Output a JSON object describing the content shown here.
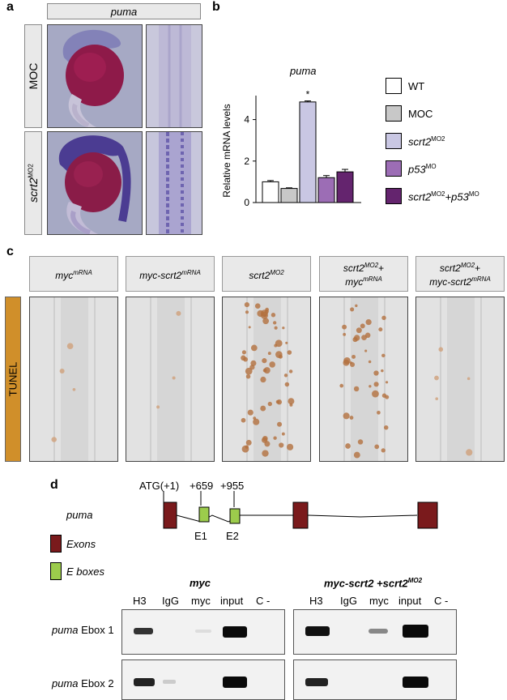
{
  "panel_a": {
    "letter": "a",
    "header": "puma",
    "row_labels": [
      "MOC",
      "scrt2"
    ],
    "row_label_sup": "MO2"
  },
  "panel_b": {
    "letter": "b",
    "title": "puma",
    "ylabel": "Relative mRNA levels",
    "significance": "*",
    "legend": [
      {
        "text": "WT",
        "sup": "",
        "color": "#ffffff"
      },
      {
        "text": "MOC",
        "sup": "",
        "color": "#c8c8c8"
      },
      {
        "text": "scrt2",
        "sup": "MO2",
        "color": "#c9c7e3"
      },
      {
        "text": "p53",
        "sup": "MO",
        "color": "#9c6db5"
      },
      {
        "text": "scrt2",
        "sup": "MO2",
        "text2": "+p53",
        "sup2": "MO",
        "color": "#64246e"
      }
    ]
  },
  "chart_data": {
    "type": "bar",
    "title": "puma",
    "ylabel": "Relative mRNA levels",
    "xlabel": "",
    "ylim": [
      0,
      5
    ],
    "yticks": [
      0,
      2,
      4
    ],
    "categories": [
      "WT",
      "MOC",
      "scrt2MO2",
      "p53MO",
      "scrt2MO2+p53MO"
    ],
    "values": [
      1.0,
      0.68,
      4.85,
      1.2,
      1.48
    ],
    "errors": [
      0.06,
      0.03,
      0.05,
      0.1,
      0.12
    ],
    "colors": [
      "#ffffff",
      "#c8c8c8",
      "#c9c7e3",
      "#9c6db5",
      "#64246e"
    ]
  },
  "panel_c": {
    "letter": "c",
    "row_label": "TUNEL",
    "headers": [
      {
        "l1": "myc",
        "s1": "mRNA",
        "l2": "",
        "s2": ""
      },
      {
        "l1": "myc-scrt2",
        "s1": "mRNA",
        "l2": "",
        "s2": ""
      },
      {
        "l1": "scrt2",
        "s1": "MO2",
        "l2": "",
        "s2": ""
      },
      {
        "l1": "scrt2",
        "s1": "MO2",
        "p1": "+",
        "l2": "myc",
        "s2": "mRNA"
      },
      {
        "l1": "scrt2",
        "s1": "MO2",
        "p1": "+",
        "l2": "myc-scrt2",
        "s2": "mRNA"
      }
    ]
  },
  "panel_d": {
    "letter": "d",
    "gene": "puma",
    "positions": [
      "ATG(+1)",
      "+659",
      "+955"
    ],
    "eboxes": [
      "E1",
      "E2"
    ],
    "legend_exons": "Exons",
    "legend_eboxes": "E boxes",
    "exon_color": "#7a1a1c",
    "ebox_color": "#9ccc4c",
    "gel_left_title": "myc",
    "gel_right_title": "myc-scrt2 +scrt2",
    "gel_right_sup": "MO2",
    "lanes": [
      "H3",
      "IgG",
      "myc",
      "input",
      "C -"
    ],
    "rows": [
      {
        "gene": "puma",
        "rest": " Ebox 1"
      },
      {
        "gene": "puma",
        "rest": " Ebox 2"
      }
    ]
  }
}
